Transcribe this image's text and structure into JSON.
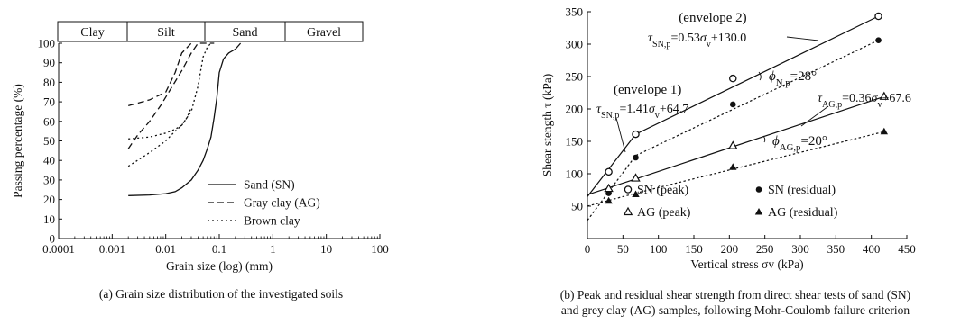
{
  "chart_data": [
    {
      "type": "line",
      "caption": "(a) Grain size distribution of the investigated soils",
      "xlabel": "Grain size (log) (mm)",
      "ylabel": "Passing percentage (%)",
      "xscale": "log",
      "xlim": [
        0.0001,
        100
      ],
      "ylim": [
        0,
        100
      ],
      "xticks": [
        "0.0001",
        "0.001",
        "0.01",
        "0.1",
        "1",
        "10",
        "100"
      ],
      "yticks": [
        "0",
        "10",
        "20",
        "30",
        "40",
        "50",
        "60",
        "70",
        "80",
        "90",
        "100"
      ],
      "soil_classes": [
        {
          "label": "Clay",
          "from": 0.0001,
          "to": 0.002
        },
        {
          "label": "Silt",
          "from": 0.002,
          "to": 0.063
        },
        {
          "label": "Sand",
          "from": 0.063,
          "to": 2
        },
        {
          "label": "Gravel",
          "from": 2,
          "to": 63
        }
      ],
      "legend_position": "right",
      "series": [
        {
          "name": "Sand (SN)",
          "style": "solid",
          "x": [
            0.002,
            0.005,
            0.01,
            0.015,
            0.02,
            0.03,
            0.04,
            0.05,
            0.06,
            0.07,
            0.08,
            0.09,
            0.1,
            0.12,
            0.15,
            0.2,
            0.25
          ],
          "y": [
            22,
            22.3,
            23,
            24,
            26,
            30,
            35,
            40,
            46,
            52,
            62,
            72,
            85,
            92,
            95,
            97,
            100
          ]
        },
        {
          "name": "Gray clay (AG)",
          "style": "dashed",
          "x": [
            0.002,
            0.003,
            0.005,
            0.008,
            0.012,
            0.02,
            0.03,
            0.04,
            0.05,
            0.06,
            0.08
          ],
          "y": [
            46,
            53,
            60,
            68,
            76,
            86,
            95,
            100,
            100,
            100,
            100
          ],
          "x2": [
            0.002,
            0.005,
            0.01,
            0.015,
            0.02,
            0.03
          ],
          "y2": [
            68,
            71,
            75,
            85,
            95,
            100
          ]
        },
        {
          "name": "Brown clay",
          "style": "dotted",
          "x": [
            0.002,
            0.005,
            0.01,
            0.015,
            0.02,
            0.025,
            0.03,
            0.04,
            0.05,
            0.06,
            0.07
          ],
          "y": [
            37,
            44,
            50,
            55,
            58,
            62,
            65,
            78,
            93,
            98,
            100
          ],
          "x2": [
            0.002,
            0.005,
            0.01,
            0.015,
            0.02,
            0.025,
            0.03
          ],
          "y2": [
            51,
            52,
            54,
            56,
            58,
            62,
            67
          ]
        }
      ]
    },
    {
      "type": "scatter",
      "caption_lines": [
        "(b) Peak and residual shear strength from direct shear tests of sand (SN)",
        "and grey clay (AG) samples, following Mohr-Coulomb failure criterion"
      ],
      "xlabel": "Vertical stress σv (kPa)",
      "ylabel": "Shear stength τ (kPa)",
      "xlim": [
        0,
        450
      ],
      "ylim": [
        0,
        350
      ],
      "xticks": [
        "0",
        "50",
        "100",
        "150",
        "200",
        "250",
        "300",
        "350",
        "400",
        "450"
      ],
      "yticks": [
        "50",
        "100",
        "150",
        "200",
        "250",
        "300",
        "350"
      ],
      "legend_position": "bottom-right",
      "series": [
        {
          "name": "SN (peak)",
          "marker": "open-circle",
          "x": [
            30,
            68,
            205,
            410
          ],
          "y": [
            103,
            161,
            247,
            343
          ]
        },
        {
          "name": "SN (residual)",
          "marker": "filled-circle",
          "x": [
            30,
            68,
            205,
            410
          ],
          "y": [
            70,
            125,
            207,
            306
          ]
        },
        {
          "name": "AG (peak)",
          "marker": "open-triangle",
          "x": [
            30,
            68,
            205,
            418
          ],
          "y": [
            77,
            93,
            143,
            219
          ]
        },
        {
          "name": "AG (residual)",
          "marker": "filled-triangle",
          "x": [
            30,
            68,
            205,
            418
          ],
          "y": [
            58,
            68,
            110,
            165
          ]
        }
      ],
      "fit_lines": [
        {
          "style": "solid",
          "x": [
            0,
            68,
            410
          ],
          "y": [
            64.7,
            161,
            343
          ]
        },
        {
          "style": "dashed",
          "x": [
            0,
            68,
            410
          ],
          "y": [
            28,
            128,
            306
          ]
        },
        {
          "style": "solid",
          "x": [
            0,
            68,
            418
          ],
          "y": [
            67.6,
            92,
            219
          ]
        },
        {
          "style": "dashed",
          "x": [
            0,
            68,
            418
          ],
          "y": [
            50,
            70,
            165
          ]
        }
      ],
      "annotations": {
        "env2": "(envelope 2)",
        "env2_eq": "τSN,p=0.53σv+130.0",
        "env1": "(envelope 1)",
        "env1_eq": "τSN,p=1.41σv+64.7",
        "phi_n": "ϕN,p=28°",
        "ag_eq": "τAG,p=0.36σv+67.6",
        "phi_ag": "ϕAG,p=20°"
      }
    }
  ]
}
